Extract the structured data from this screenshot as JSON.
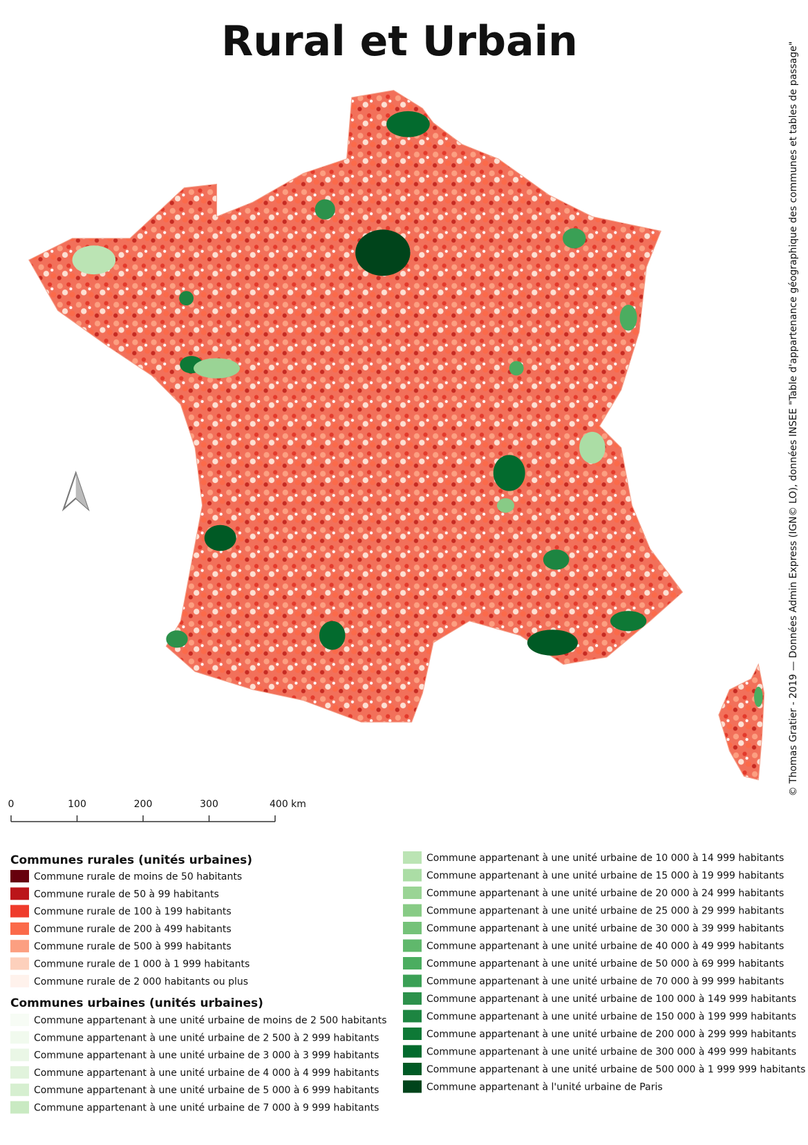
{
  "title": "Rural et Urbain",
  "credit": "© Thomas Gratier - 2019 — Données Admin Express (IGN© LO), données INSEE \"Table d'appartenance géographique des communes et tables de passage\"",
  "scale": {
    "labels": [
      "0",
      "100",
      "200",
      "300",
      "400 km"
    ]
  },
  "legend": {
    "rural": {
      "title": "Communes rurales (unités urbaines)",
      "items": [
        {
          "label": "Commune rurale de moins de 50 habitants",
          "color": "#67000d"
        },
        {
          "label": "Commune rurale de 50 à 99 habitants",
          "color": "#bb151a"
        },
        {
          "label": "Commune rurale de 100 à 199 habitants",
          "color": "#ef3b2c"
        },
        {
          "label": "Commune rurale de 200 à 499 habitants",
          "color": "#fb6a4a"
        },
        {
          "label": "Commune rurale de 500 à 999 habitants",
          "color": "#fc9f81"
        },
        {
          "label": "Commune rurale de 1 000 à 1 999 habitants",
          "color": "#fdd0bc"
        },
        {
          "label": "Commune rurale de 2 000 habitants ou plus",
          "color": "#fff2ec"
        }
      ]
    },
    "urban": {
      "title": "Communes urbaines (unités urbaines)",
      "items": [
        {
          "label": "Commune appartenant à une unité urbaine de moins de 2 500 habitants",
          "color": "#f7fcf5"
        },
        {
          "label": "Commune appartenant à une unité urbaine de 2 500 à 2 999 habitants",
          "color": "#f1faee"
        },
        {
          "label": "Commune appartenant à une unité urbaine de 3 000 à 3 999 habitants",
          "color": "#eaf7e6"
        },
        {
          "label": "Commune appartenant à une unité urbaine de 4 000 à 4 999 habitants",
          "color": "#e1f3dc"
        },
        {
          "label": "Commune appartenant à une unité urbaine de 5 000 à 6 999 habitants",
          "color": "#d6efd0"
        },
        {
          "label": "Commune appartenant à une unité urbaine de 7 000 à 9 999 habitants",
          "color": "#c9eac2"
        },
        {
          "label": "Commune appartenant à une unité urbaine de 10 000 à 14 999 habitants",
          "color": "#bbe4b4"
        },
        {
          "label": "Commune appartenant à une unité urbaine de 15 000 à 19 999 habitants",
          "color": "#abdda5"
        },
        {
          "label": "Commune appartenant à une unité urbaine de 20 000 à 24 999 habitants",
          "color": "#9ad495"
        },
        {
          "label": "Commune appartenant à une unité urbaine de 25 000 à 29 999 habitants",
          "color": "#88cb86"
        },
        {
          "label": "Commune appartenant à une unité urbaine de 30 000 à 39 999 habitants",
          "color": "#75c279"
        },
        {
          "label": "Commune appartenant à une unité urbaine de 40 000 à 49 999 habitants",
          "color": "#60b86c"
        },
        {
          "label": "Commune appartenant à une unité urbaine de 50 000 à 69 999 habitants",
          "color": "#4bad60"
        },
        {
          "label": "Commune appartenant à une unité urbaine de 70 000 à 99 999 habitants",
          "color": "#3aa055"
        },
        {
          "label": "Commune appartenant à une unité urbaine de 100 000 à 149 999 habitants",
          "color": "#2c914b"
        },
        {
          "label": "Commune appartenant à une unité urbaine de 150 000 à 199 999 habitants",
          "color": "#1d8541"
        },
        {
          "label": "Commune appartenant à une unité urbaine de 200 000 à 299 999 habitants",
          "color": "#0e7936"
        },
        {
          "label": "Commune appartenant à une unité urbaine de 300 000 à 499 999 habitants",
          "color": "#036b2e"
        },
        {
          "label": "Commune appartenant à une unité urbaine de 500 000 à 1 999 999 habitants",
          "color": "#005a25"
        },
        {
          "label": "Commune appartenant à l'unité urbaine de Paris",
          "color": "#00441b"
        }
      ]
    }
  }
}
